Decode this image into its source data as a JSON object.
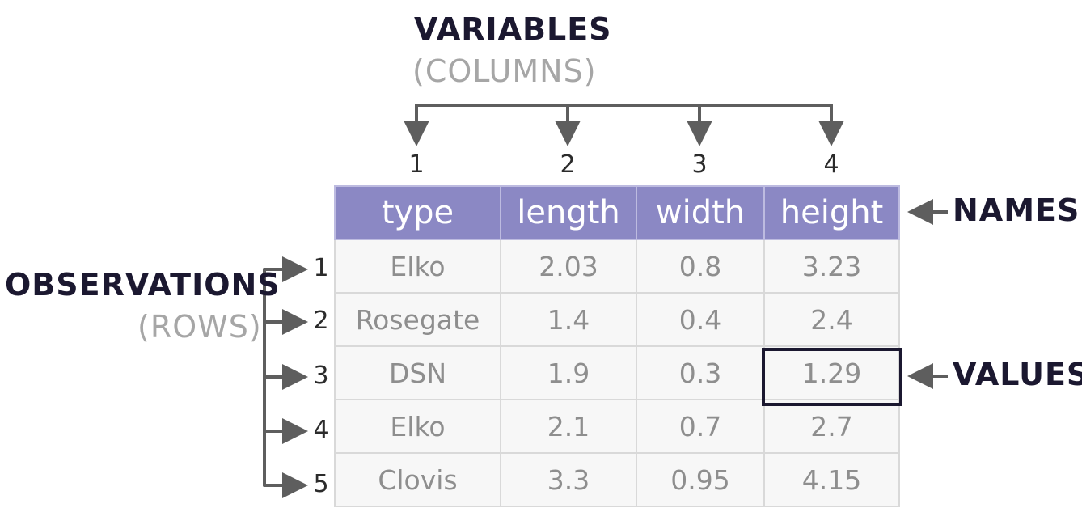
{
  "labels": {
    "variables": "VARIABLES",
    "variables_sub": "(COLUMNS)",
    "observations": "OBSERVATIONS",
    "observations_sub": "(ROWS)",
    "names": "NAMES",
    "values": "VALUES"
  },
  "column_numbers": [
    "1",
    "2",
    "3",
    "4"
  ],
  "row_numbers": [
    "1",
    "2",
    "3",
    "4",
    "5"
  ],
  "table": {
    "headers": [
      "type",
      "length",
      "width",
      "height"
    ],
    "rows": [
      [
        "Elko",
        "2.03",
        "0.8",
        "3.23"
      ],
      [
        "Rosegate",
        "1.4",
        "0.4",
        "2.4"
      ],
      [
        "DSN",
        "1.9",
        "0.3",
        "1.29"
      ],
      [
        "Elko",
        "2.1",
        "0.7",
        "2.7"
      ],
      [
        "Clovis",
        "3.3",
        "0.95",
        "4.15"
      ]
    ]
  },
  "highlighted_cell": {
    "row": 3,
    "column": "height"
  },
  "colors": {
    "header_bg": "#8b88c4",
    "cell_bg": "#f7f7f7",
    "ink": "#1b1830",
    "arrow": "#5e5e5e"
  }
}
